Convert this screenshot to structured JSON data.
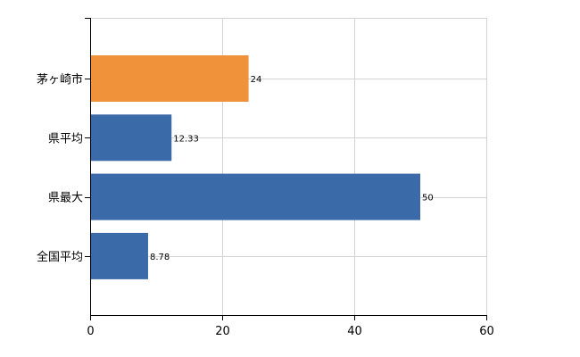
{
  "chart_data": {
    "type": "bar",
    "orientation": "horizontal",
    "categories": [
      "茅ヶ崎市",
      "県平均",
      "県最大",
      "全国平均"
    ],
    "values": [
      24,
      12.33,
      50,
      8.78
    ],
    "value_labels": [
      "24",
      "12.33",
      "50",
      "8.78"
    ],
    "bar_colors": [
      "#f0923a",
      "#3b6aa8",
      "#3b6aa8",
      "#3b6aa8"
    ],
    "title": "",
    "xlabel": "",
    "ylabel": "",
    "xlim": [
      0,
      60
    ],
    "x_ticks": [
      0,
      20,
      40,
      60
    ],
    "x_tick_labels": [
      "0",
      "20",
      "40",
      "60"
    ],
    "grid": true,
    "legend": "none"
  }
}
